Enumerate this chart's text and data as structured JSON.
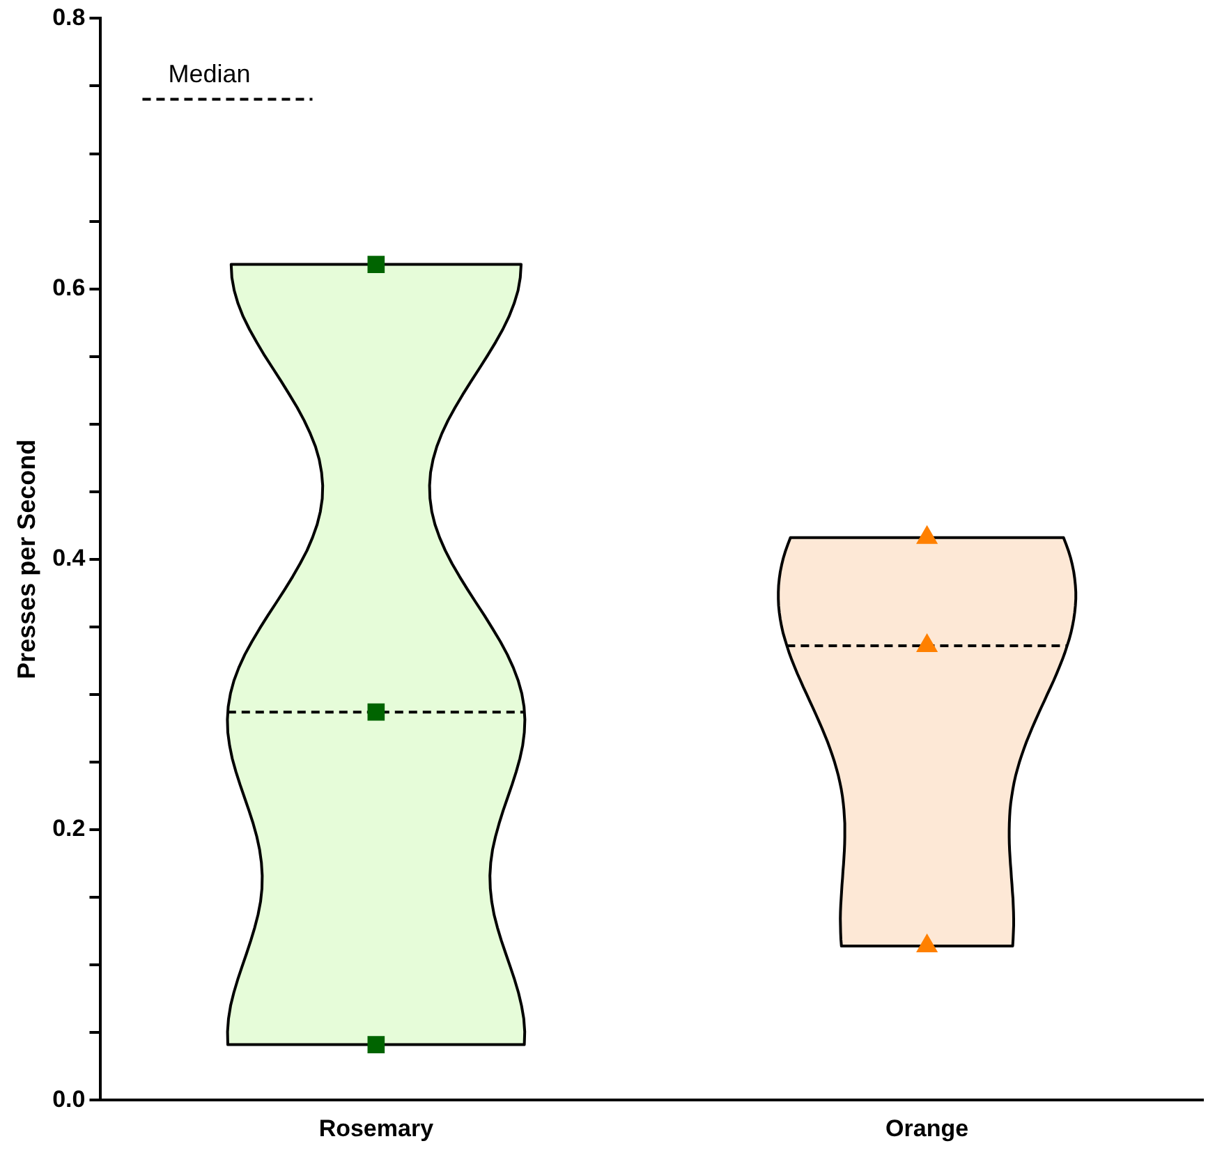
{
  "chart_data": {
    "type": "scatter",
    "ylabel": "Presses per Second",
    "categories": [
      "Rosemary",
      "Orange"
    ],
    "ylim": [
      0,
      0.8
    ],
    "yticks": [
      {
        "value": 0,
        "label": "0.0"
      },
      {
        "value": 0.05,
        "label": null
      },
      {
        "value": 0.1,
        "label": null
      },
      {
        "value": 0.15,
        "label": null
      },
      {
        "value": 0.2,
        "label": "0.2"
      },
      {
        "value": 0.25,
        "label": null
      },
      {
        "value": 0.3,
        "label": null
      },
      {
        "value": 0.35,
        "label": null
      },
      {
        "value": 0.4,
        "label": "0.4"
      },
      {
        "value": 0.45,
        "label": null
      },
      {
        "value": 0.5,
        "label": null
      },
      {
        "value": 0.55,
        "label": null
      },
      {
        "value": 0.6,
        "label": "0.6"
      },
      {
        "value": 0.65,
        "label": null
      },
      {
        "value": 0.7,
        "label": null
      },
      {
        "value": 0.75,
        "label": null
      },
      {
        "value": 0.8,
        "label": "0.8"
      }
    ],
    "series": [
      {
        "x": [
          "Rosemary",
          "Rosemary",
          "Rosemary"
        ],
        "values": [
          0.618,
          0.287,
          0.041
        ],
        "color": "#006400",
        "marker": "square"
      },
      {
        "x": [
          "Orange",
          "Orange",
          "Orange"
        ],
        "values": [
          0.416,
          0.336,
          0.114
        ],
        "color": "#ff8000",
        "marker": "triangle"
      }
    ],
    "annotations": [
      "Median"
    ],
    "grid": false
  }
}
